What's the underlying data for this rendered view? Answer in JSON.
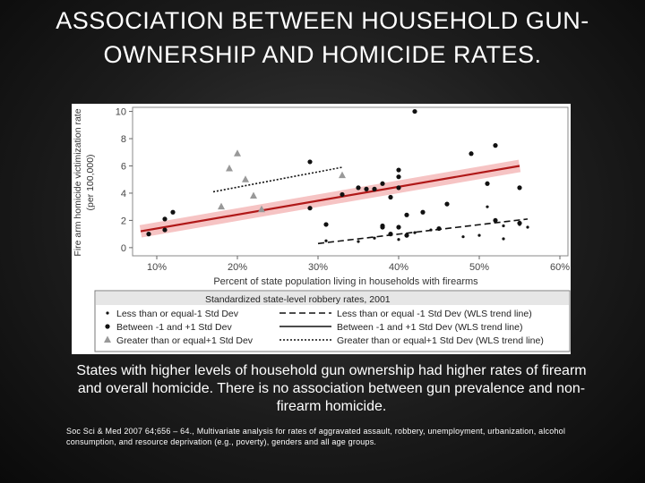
{
  "slide": {
    "title": "ASSOCIATION BETWEEN HOUSEHOLD GUN-OWNERSHIP AND HOMICIDE RATES.",
    "caption": "States with higher levels of household gun ownership had higher rates of firearm and overall homicide.  There is no association between gun prevalence and non-firearm homicide.",
    "citation": "Soc Sci & Med 2007 64;656 – 64., Multivariate analysis for rates of aggravated assault, robbery, unemployment, urbanization, alcohol consumption, and resource deprivation (e.g., poverty), genders and all age groups."
  },
  "colors": {
    "trend_band": "#f4b6b6",
    "trend_line": "#b01818",
    "black": "#111111",
    "gray": "#999999"
  },
  "chart_data": {
    "type": "scatter",
    "title": "",
    "xlabel": "Percent of state population living in households with firearms",
    "ylabel_line1": "Fire arm homicide victimization rate",
    "ylabel_line2": "(per 100,000)",
    "xlim": [
      0.07,
      0.61
    ],
    "ylim": [
      -0.6,
      10.3
    ],
    "x_ticks": [
      0.1,
      0.2,
      0.3,
      0.4,
      0.5,
      0.6
    ],
    "x_tick_labels": [
      "10%",
      "20%",
      "30%",
      "40%",
      "50%",
      "60%"
    ],
    "y_ticks": [
      0,
      2,
      4,
      6,
      8,
      10
    ],
    "y_tick_labels": [
      "0",
      "2",
      "4",
      "6",
      "8",
      "10"
    ],
    "grid": false,
    "legend": {
      "title": "Standardized state-level robbery rates, 2001",
      "placement": "bottom",
      "rows": [
        {
          "marker": "Less than or equal-1 Std Dev",
          "line": "Less than or equal -1 Std Dev (WLS trend line)"
        },
        {
          "marker": "Between -1 and +1 Std Dev",
          "line": "Between -1 and +1 Std Dev (WLS trend line)"
        },
        {
          "marker": "Greater than or equal+1 Std Dev",
          "line": "Greater than or equal+1 Std Dev (WLS trend line)"
        }
      ]
    },
    "series": [
      {
        "name": "Less than or equal-1 Std Dev",
        "marker": "small-dot",
        "points": [
          [
            0.31,
            0.5
          ],
          [
            0.35,
            0.45
          ],
          [
            0.37,
            0.7
          ],
          [
            0.38,
            1.5
          ],
          [
            0.39,
            0.95
          ],
          [
            0.4,
            0.6
          ],
          [
            0.42,
            1.1
          ],
          [
            0.44,
            1.3
          ],
          [
            0.48,
            0.8
          ],
          [
            0.5,
            0.9
          ],
          [
            0.53,
            1.6
          ],
          [
            0.53,
            0.65
          ],
          [
            0.55,
            1.7
          ],
          [
            0.56,
            1.5
          ],
          [
            0.51,
            3.0
          ]
        ]
      },
      {
        "name": "Between -1 and +1 Std Dev",
        "marker": "dot",
        "points": [
          [
            0.09,
            1.0
          ],
          [
            0.11,
            1.3
          ],
          [
            0.12,
            2.6
          ],
          [
            0.11,
            2.1
          ],
          [
            0.29,
            6.3
          ],
          [
            0.29,
            2.9
          ],
          [
            0.31,
            1.7
          ],
          [
            0.33,
            3.9
          ],
          [
            0.35,
            4.4
          ],
          [
            0.36,
            4.3
          ],
          [
            0.37,
            4.3
          ],
          [
            0.38,
            4.7
          ],
          [
            0.38,
            1.6
          ],
          [
            0.38,
            1.5
          ],
          [
            0.39,
            1.0
          ],
          [
            0.39,
            3.7
          ],
          [
            0.4,
            1.5
          ],
          [
            0.41,
            0.9
          ],
          [
            0.4,
            5.7
          ],
          [
            0.4,
            5.2
          ],
          [
            0.4,
            4.4
          ],
          [
            0.41,
            2.4
          ],
          [
            0.42,
            10.0
          ],
          [
            0.43,
            2.6
          ],
          [
            0.45,
            1.4
          ],
          [
            0.46,
            3.2
          ],
          [
            0.49,
            6.9
          ],
          [
            0.51,
            4.7
          ],
          [
            0.52,
            7.5
          ],
          [
            0.52,
            2.0
          ],
          [
            0.55,
            4.4
          ],
          [
            0.55,
            1.8
          ]
        ]
      },
      {
        "name": "Greater than or equal+1 Std Dev",
        "marker": "triangle",
        "points": [
          [
            0.18,
            3.0
          ],
          [
            0.19,
            5.8
          ],
          [
            0.2,
            6.9
          ],
          [
            0.21,
            5.0
          ],
          [
            0.22,
            3.8
          ],
          [
            0.23,
            2.8
          ],
          [
            0.33,
            5.3
          ]
        ]
      }
    ],
    "trend_lines": [
      {
        "name": "Less than or equal -1 Std Dev (WLS trend line)",
        "style": "dashed",
        "x": [
          0.3,
          0.56
        ],
        "y": [
          0.3,
          2.1
        ]
      },
      {
        "name": "Between -1 and +1 Std Dev (WLS trend line)",
        "style": "solid",
        "x": [
          0.08,
          0.55
        ],
        "y": [
          1.2,
          6.0
        ],
        "band": true
      },
      {
        "name": "Greater than or equal+1 Std Dev (WLS trend line)",
        "style": "dotted",
        "x": [
          0.17,
          0.33
        ],
        "y": [
          4.1,
          5.9
        ]
      }
    ]
  }
}
